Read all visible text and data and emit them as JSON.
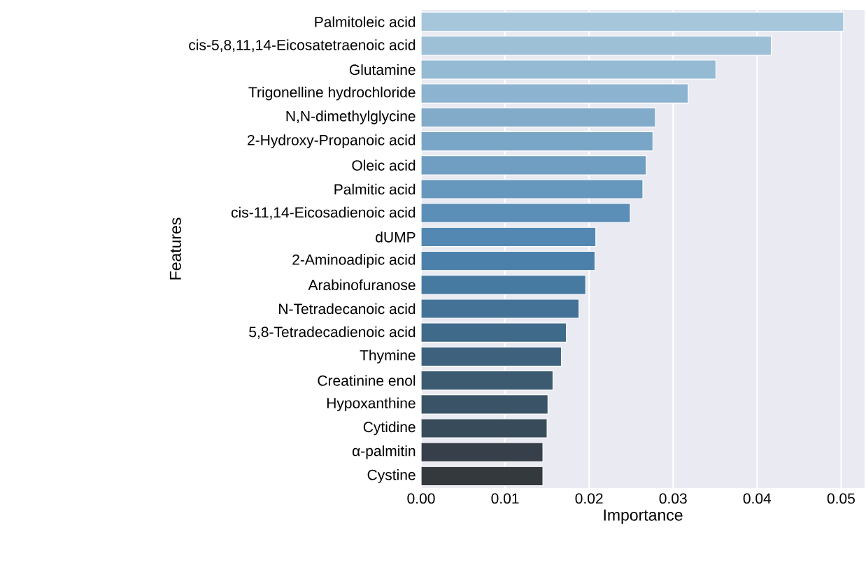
{
  "chart_data": {
    "type": "bar",
    "orientation": "horizontal",
    "xlabel": "Importance",
    "ylabel": "Features",
    "categories": [
      "Palmitoleic acid",
      "cis-5,8,11,14-Eicosatetraenoic acid",
      "Glutamine",
      "Trigonelline hydrochloride",
      "N,N-dimethylglycine",
      "2-Hydroxy-Propanoic acid",
      "Oleic acid",
      "Palmitic acid",
      "cis-11,14-Eicosadienoic acid",
      "dUMP",
      "2-Aminoadipic acid",
      "Arabinofuranose",
      "N-Tetradecanoic acid",
      "5,8-Tetradecadienoic acid",
      "Thymine",
      "Creatinine enol",
      "Hypoxanthine",
      "Cytidine",
      "α-palmitin",
      "Cystine"
    ],
    "values": [
      0.0503,
      0.0417,
      0.0351,
      0.0318,
      0.0279,
      0.0276,
      0.0268,
      0.0264,
      0.0249,
      0.0208,
      0.0207,
      0.0196,
      0.0188,
      0.0173,
      0.0167,
      0.0157,
      0.0151,
      0.015,
      0.0145,
      0.0145
    ],
    "colors": [
      "#a6c6dc",
      "#9ec0d7",
      "#95bad3",
      "#8cb3cf",
      "#82abca",
      "#79a5c6",
      "#6f9ec2",
      "#6697bd",
      "#5c8fb8",
      "#5288b2",
      "#4a80aa",
      "#467aa1",
      "#437296",
      "#406a8a",
      "#3e627d",
      "#3c5b71",
      "#3a5366",
      "#384b5a",
      "#363f4a",
      "#34393e"
    ],
    "xlim": [
      0,
      0.0528
    ],
    "xticks": [
      {
        "value": 0,
        "label": "0.00"
      },
      {
        "value": 0.01,
        "label": "0.01"
      },
      {
        "value": 0.02,
        "label": "0.02"
      },
      {
        "value": 0.03,
        "label": "0.03"
      },
      {
        "value": 0.04,
        "label": "0.04"
      },
      {
        "value": 0.05,
        "label": "0.05"
      }
    ],
    "grid": "x"
  }
}
